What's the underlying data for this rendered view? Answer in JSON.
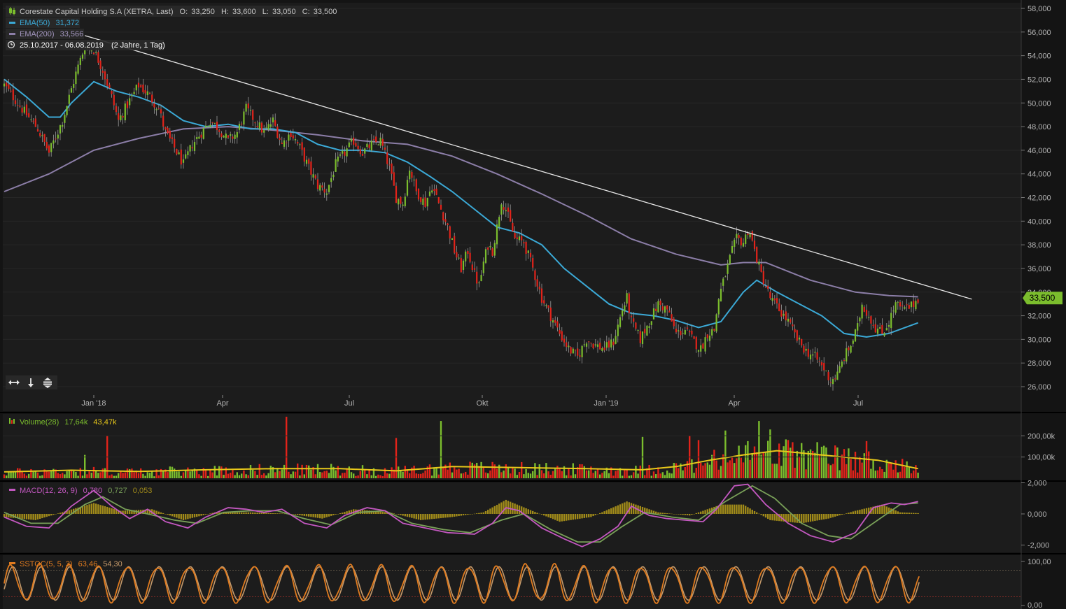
{
  "header": {
    "title": "Corestate Capital Holding S.A (XETRA, Last)",
    "ohlc": {
      "o_label": "O:",
      "o": "33,250",
      "h_label": "H:",
      "h": "33,600",
      "l_label": "L:",
      "l": "33,050",
      "c_label": "C:",
      "c": "33,500"
    },
    "ema50_label": "EMA(50)",
    "ema50_value": "31,372",
    "ema200_label": "EMA(200)",
    "ema200_value": "33,566",
    "range": "25.10.2017 - 06.08.2019",
    "range_detail": "(2 Jahre, 1 Tag)"
  },
  "colors": {
    "up": "#7bbd2d",
    "down": "#e2231a",
    "ema50": "#3ba9d6",
    "ema200": "#8c7ea8",
    "volume_ma": "#e8c81a",
    "macd": "#c458c1",
    "signal": "#79a058",
    "histogram": "#a08a1a",
    "stoch_k": "#e07b1f",
    "stoch_d": "#c4996a",
    "price_tag": "#7bbd2d"
  },
  "chart_data": [
    {
      "type": "candlestick",
      "name": "price",
      "x_ticks": [
        "Jan '18",
        "Apr",
        "Jul",
        "Okt",
        "Jan '19",
        "Apr",
        "Jul"
      ],
      "y_ticks": [
        "58,000",
        "56,000",
        "54,000",
        "52,000",
        "50,000",
        "48,000",
        "46,000",
        "44,000",
        "42,000",
        "40,000",
        "38,000",
        "36,000",
        "34,000",
        "32,000",
        "30,000",
        "28,000",
        "26,000"
      ],
      "ylim": [
        25,
        58.5
      ],
      "last_price": 33.5,
      "last_price_label": "33,500",
      "close_path": [
        [
          0,
          51.5
        ],
        [
          8,
          49.5
        ],
        [
          15,
          47.8
        ],
        [
          20,
          45.8
        ],
        [
          26,
          48.5
        ],
        [
          32,
          52.5
        ],
        [
          36,
          54.8
        ],
        [
          40,
          54.5
        ],
        [
          44,
          52.8
        ],
        [
          48,
          50.5
        ],
        [
          51,
          48.5
        ],
        [
          56,
          50.2
        ],
        [
          60,
          51.5
        ],
        [
          64,
          50.8
        ],
        [
          69,
          49.5
        ],
        [
          72,
          47.5
        ],
        [
          76,
          46.2
        ],
        [
          80,
          44.8
        ],
        [
          84,
          46.5
        ],
        [
          88,
          47.5
        ],
        [
          92,
          48.5
        ],
        [
          96,
          47.8
        ],
        [
          100,
          46.8
        ],
        [
          104,
          47.5
        ],
        [
          108,
          49.5
        ],
        [
          112,
          48.5
        ],
        [
          116,
          47.5
        ],
        [
          120,
          48.5
        ],
        [
          124,
          46.5
        ],
        [
          128,
          47.5
        ],
        [
          132,
          46.2
        ],
        [
          136,
          44.5
        ],
        [
          140,
          43.0
        ],
        [
          144,
          42.5
        ],
        [
          148,
          44.8
        ],
        [
          152,
          45.8
        ],
        [
          156,
          46.8
        ],
        [
          160,
          45.8
        ],
        [
          164,
          46.5
        ],
        [
          168,
          46.8
        ],
        [
          172,
          44.5
        ],
        [
          175,
          42.0
        ],
        [
          178,
          41.5
        ],
        [
          181,
          44.5
        ],
        [
          184,
          42.5
        ],
        [
          188,
          41.5
        ],
        [
          191,
          43.0
        ],
        [
          194,
          41.5
        ],
        [
          198,
          39.5
        ],
        [
          201,
          37.5
        ],
        [
          204,
          36.0
        ],
        [
          207,
          37.5
        ],
        [
          210,
          35.5
        ],
        [
          212,
          34.5
        ],
        [
          214,
          36.5
        ],
        [
          216,
          38.0
        ],
        [
          218,
          37.5
        ],
        [
          220,
          39.5
        ],
        [
          222,
          41.8
        ],
        [
          224,
          41.0
        ],
        [
          228,
          38.5
        ],
        [
          232,
          38.2
        ],
        [
          236,
          36.0
        ],
        [
          240,
          33.5
        ],
        [
          244,
          32.0
        ],
        [
          248,
          30.5
        ],
        [
          252,
          29.2
        ],
        [
          256,
          28.5
        ],
        [
          260,
          30.0
        ],
        [
          264,
          29.5
        ],
        [
          268,
          29.2
        ],
        [
          272,
          29.8
        ],
        [
          276,
          32.5
        ],
        [
          278,
          33.5
        ],
        [
          280,
          31.5
        ],
        [
          284,
          30.0
        ],
        [
          288,
          31.5
        ],
        [
          292,
          33.0
        ],
        [
          296,
          32.5
        ],
        [
          298,
          31.5
        ],
        [
          300,
          30.5
        ],
        [
          304,
          30.8
        ],
        [
          308,
          29.8
        ],
        [
          311,
          29.2
        ],
        [
          314,
          30.5
        ],
        [
          317,
          30.8
        ],
        [
          319,
          33.5
        ],
        [
          322,
          35.5
        ],
        [
          325,
          37.5
        ],
        [
          327,
          38.5
        ],
        [
          330,
          38.2
        ],
        [
          332,
          39.2
        ],
        [
          333,
          39.0
        ],
        [
          335,
          37.5
        ],
        [
          338,
          35.5
        ],
        [
          342,
          33.5
        ],
        [
          346,
          32.5
        ],
        [
          350,
          31.5
        ],
        [
          354,
          30.0
        ],
        [
          358,
          29.0
        ],
        [
          362,
          28.5
        ],
        [
          366,
          27.5
        ],
        [
          369,
          26.5
        ],
        [
          372,
          27.0
        ],
        [
          375,
          28.5
        ],
        [
          378,
          29.5
        ],
        [
          381,
          31.0
        ],
        [
          383,
          33.0
        ],
        [
          386,
          32.0
        ],
        [
          389,
          31.0
        ],
        [
          392,
          30.5
        ],
        [
          395,
          31.5
        ],
        [
          398,
          33.0
        ],
        [
          401,
          32.5
        ],
        [
          405,
          32.8
        ],
        [
          408,
          33.5
        ]
      ]
    },
    {
      "type": "line",
      "name": "EMA(50)",
      "points": [
        [
          0,
          52.0
        ],
        [
          10,
          50.5
        ],
        [
          20,
          48.8
        ],
        [
          25,
          48.8
        ],
        [
          30,
          50.0
        ],
        [
          40,
          51.8
        ],
        [
          50,
          51.0
        ],
        [
          60,
          50.5
        ],
        [
          70,
          49.8
        ],
        [
          80,
          48.5
        ],
        [
          90,
          48.0
        ],
        [
          100,
          48.2
        ],
        [
          110,
          47.8
        ],
        [
          120,
          47.8
        ],
        [
          130,
          47.5
        ],
        [
          140,
          46.5
        ],
        [
          150,
          46.0
        ],
        [
          160,
          46.0
        ],
        [
          170,
          45.8
        ],
        [
          180,
          45.0
        ],
        [
          190,
          43.8
        ],
        [
          200,
          42.5
        ],
        [
          210,
          41.0
        ],
        [
          220,
          39.5
        ],
        [
          230,
          39.0
        ],
        [
          240,
          38.0
        ],
        [
          250,
          36.0
        ],
        [
          260,
          34.5
        ],
        [
          270,
          33.0
        ],
        [
          280,
          32.2
        ],
        [
          290,
          32.0
        ],
        [
          300,
          31.6
        ],
        [
          310,
          31.0
        ],
        [
          320,
          31.5
        ],
        [
          330,
          34.0
        ],
        [
          336,
          35.0
        ],
        [
          345,
          34.0
        ],
        [
          355,
          33.0
        ],
        [
          365,
          32.0
        ],
        [
          375,
          30.5
        ],
        [
          385,
          30.2
        ],
        [
          395,
          30.5
        ],
        [
          408,
          31.4
        ]
      ]
    },
    {
      "type": "line",
      "name": "EMA(200)",
      "points": [
        [
          0,
          42.5
        ],
        [
          20,
          44.0
        ],
        [
          40,
          46.0
        ],
        [
          60,
          47.0
        ],
        [
          80,
          47.8
        ],
        [
          100,
          48.0
        ],
        [
          120,
          47.7
        ],
        [
          140,
          47.3
        ],
        [
          160,
          46.8
        ],
        [
          180,
          46.5
        ],
        [
          200,
          45.5
        ],
        [
          220,
          44.0
        ],
        [
          240,
          42.3
        ],
        [
          260,
          40.5
        ],
        [
          280,
          38.5
        ],
        [
          300,
          37.2
        ],
        [
          320,
          36.3
        ],
        [
          330,
          36.5
        ],
        [
          340,
          36.5
        ],
        [
          360,
          35.0
        ],
        [
          380,
          34.0
        ],
        [
          395,
          33.7
        ],
        [
          408,
          33.6
        ]
      ]
    },
    {
      "type": "line",
      "name": "trendline",
      "points": [
        [
          36,
          55.7
        ],
        [
          432,
          33.4
        ]
      ]
    },
    {
      "type": "bar",
      "name": "Volume(28)",
      "legend_label": "Volume(28)",
      "legend_v1": "17,64k",
      "legend_v2": "43,47k",
      "y_ticks": [
        "200,00k",
        "100,00k"
      ],
      "ylim": [
        0,
        290000
      ],
      "ma_points": [
        [
          0,
          30000
        ],
        [
          30,
          38000
        ],
        [
          60,
          32000
        ],
        [
          90,
          40000
        ],
        [
          120,
          45000
        ],
        [
          150,
          45000
        ],
        [
          175,
          35000
        ],
        [
          200,
          55000
        ],
        [
          230,
          50000
        ],
        [
          260,
          45000
        ],
        [
          285,
          40000
        ],
        [
          300,
          55000
        ],
        [
          315,
          85000
        ],
        [
          330,
          110000
        ],
        [
          345,
          130000
        ],
        [
          360,
          115000
        ],
        [
          375,
          100000
        ],
        [
          390,
          85000
        ],
        [
          408,
          45000
        ]
      ],
      "spikes": [
        [
          36,
          110000
        ],
        [
          46,
          200000
        ],
        [
          126,
          290000
        ],
        [
          175,
          190000
        ],
        [
          195,
          270000
        ],
        [
          285,
          195000
        ],
        [
          306,
          200000
        ],
        [
          310,
          180000
        ],
        [
          322,
          225000
        ],
        [
          332,
          175000
        ],
        [
          337,
          270000
        ],
        [
          342,
          230000
        ],
        [
          352,
          170000
        ],
        [
          372,
          145000
        ],
        [
          380,
          125000
        ],
        [
          385,
          175000
        ]
      ]
    },
    {
      "type": "line",
      "name": "MACD(12, 26, 9)",
      "legend_label": "MACD(12, 26, 9)",
      "legend_v1": "0,780",
      "legend_v2": "0,727",
      "legend_v3": "0,053",
      "y_ticks": [
        "2,000",
        "0,000",
        "-2,000"
      ],
      "ylim": [
        -2.3,
        2.3
      ],
      "macd_points": [
        [
          0,
          -0.2
        ],
        [
          10,
          -0.8
        ],
        [
          20,
          -0.9
        ],
        [
          30,
          0.5
        ],
        [
          40,
          1.5
        ],
        [
          48,
          0.5
        ],
        [
          56,
          -0.3
        ],
        [
          64,
          0.3
        ],
        [
          72,
          -0.5
        ],
        [
          82,
          -0.9
        ],
        [
          90,
          -0.2
        ],
        [
          100,
          0.4
        ],
        [
          108,
          0.3
        ],
        [
          116,
          0.1
        ],
        [
          124,
          0.3
        ],
        [
          134,
          -0.6
        ],
        [
          144,
          -0.9
        ],
        [
          152,
          -0.1
        ],
        [
          162,
          0.4
        ],
        [
          170,
          0.2
        ],
        [
          178,
          -0.6
        ],
        [
          188,
          -0.9
        ],
        [
          198,
          -1.2
        ],
        [
          210,
          -1.3
        ],
        [
          218,
          -0.6
        ],
        [
          224,
          0.4
        ],
        [
          230,
          0.2
        ],
        [
          240,
          -0.9
        ],
        [
          250,
          -1.6
        ],
        [
          258,
          -2.1
        ],
        [
          266,
          -1.6
        ],
        [
          274,
          -0.8
        ],
        [
          280,
          0.5
        ],
        [
          288,
          -0.1
        ],
        [
          296,
          -0.3
        ],
        [
          304,
          -0.4
        ],
        [
          312,
          -0.5
        ],
        [
          318,
          0.3
        ],
        [
          326,
          1.8
        ],
        [
          332,
          1.9
        ],
        [
          340,
          0.6
        ],
        [
          350,
          -0.6
        ],
        [
          360,
          -1.4
        ],
        [
          370,
          -1.8
        ],
        [
          380,
          -1.2
        ],
        [
          388,
          0.4
        ],
        [
          396,
          0.7
        ],
        [
          402,
          0.6
        ],
        [
          408,
          0.8
        ]
      ],
      "signal_points": [
        [
          0,
          0.1
        ],
        [
          12,
          -0.6
        ],
        [
          24,
          -0.6
        ],
        [
          36,
          0.6
        ],
        [
          44,
          1.1
        ],
        [
          54,
          0.3
        ],
        [
          64,
          0.0
        ],
        [
          76,
          -0.4
        ],
        [
          86,
          -0.6
        ],
        [
          98,
          0.1
        ],
        [
          110,
          0.2
        ],
        [
          122,
          0.2
        ],
        [
          134,
          -0.3
        ],
        [
          146,
          -0.7
        ],
        [
          158,
          0.1
        ],
        [
          170,
          0.2
        ],
        [
          182,
          -0.6
        ],
        [
          196,
          -1.0
        ],
        [
          208,
          -1.2
        ],
        [
          222,
          -0.4
        ],
        [
          232,
          0.0
        ],
        [
          244,
          -1.0
        ],
        [
          256,
          -1.8
        ],
        [
          266,
          -1.8
        ],
        [
          276,
          -0.8
        ],
        [
          286,
          0.1
        ],
        [
          298,
          -0.2
        ],
        [
          310,
          -0.4
        ],
        [
          322,
          0.8
        ],
        [
          334,
          1.8
        ],
        [
          344,
          1.0
        ],
        [
          356,
          -0.6
        ],
        [
          368,
          -1.4
        ],
        [
          378,
          -1.6
        ],
        [
          390,
          -0.4
        ],
        [
          400,
          0.6
        ],
        [
          408,
          0.7
        ]
      ],
      "hist_points": [
        [
          0,
          -0.2
        ],
        [
          14,
          -0.4
        ],
        [
          28,
          0.2
        ],
        [
          40,
          0.7
        ],
        [
          52,
          0.2
        ],
        [
          66,
          0.3
        ],
        [
          80,
          -0.4
        ],
        [
          94,
          0.1
        ],
        [
          110,
          0.1
        ],
        [
          128,
          0.0
        ],
        [
          142,
          -0.3
        ],
        [
          156,
          0.3
        ],
        [
          172,
          0.1
        ],
        [
          186,
          -0.4
        ],
        [
          200,
          -0.2
        ],
        [
          214,
          0.1
        ],
        [
          224,
          0.9
        ],
        [
          234,
          0.3
        ],
        [
          248,
          -0.5
        ],
        [
          262,
          -0.2
        ],
        [
          278,
          0.8
        ],
        [
          292,
          0.1
        ],
        [
          306,
          -0.1
        ],
        [
          320,
          0.6
        ],
        [
          330,
          0.6
        ],
        [
          342,
          -0.4
        ],
        [
          356,
          -0.6
        ],
        [
          368,
          -0.3
        ],
        [
          380,
          0.2
        ],
        [
          392,
          0.6
        ],
        [
          400,
          0.1
        ],
        [
          408,
          0.05
        ]
      ]
    },
    {
      "type": "line",
      "name": "SSTOC(5, 5, 3)",
      "legend_label": "SSTOC(5, 5, 3)",
      "legend_v1": "63,46",
      "legend_v2": "54,30",
      "y_ticks": [
        "100,00",
        "0,00"
      ],
      "ylim": [
        0,
        100
      ],
      "upper_level": 80,
      "lower_level": 20
    }
  ]
}
